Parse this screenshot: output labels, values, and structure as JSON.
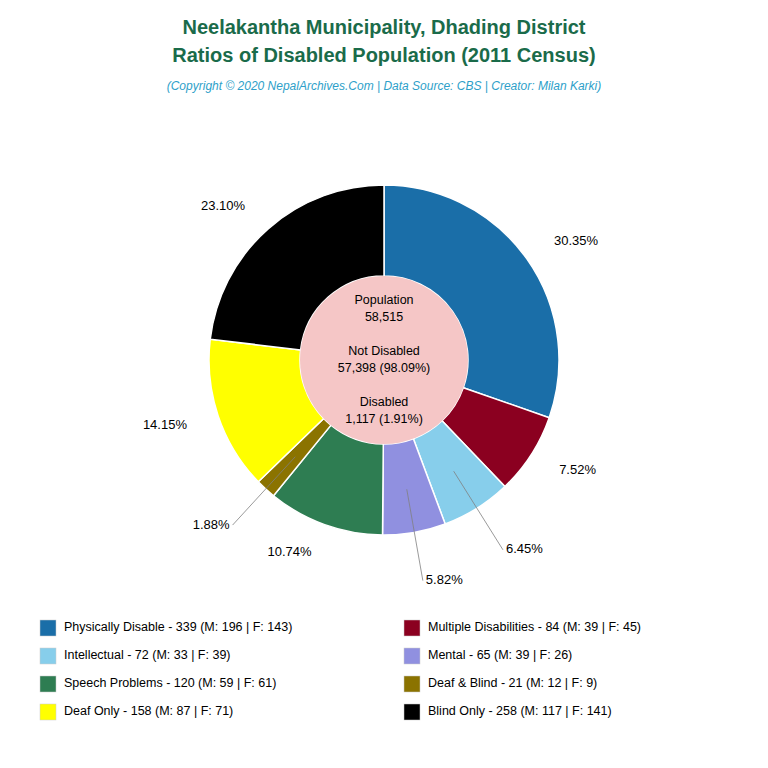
{
  "chart_data": {
    "type": "pie",
    "title": "Neelakantha Municipality, Dhading District\nRatios of Disabled Population (2011 Census)",
    "subtitle": "(Copyright © 2020 NepalArchives.Com | Data Source: CBS | Creator: Milan Karki)",
    "categories": [
      "Physically Disable - 339 (M: 196 | F: 143)",
      "Multiple Disabilities - 84 (M: 39 | F: 45)",
      "Intellectual - 72 (M: 33 | F: 39)",
      "Mental - 65 (M: 39 | F: 26)",
      "Speech Problems - 120 (M: 59 | F: 61)",
      "Deaf & Blind - 21 (M: 12 | F: 9)",
      "Deaf Only - 158 (M: 87 | F: 71)",
      "Blind Only - 258 (M: 117 | F: 141)"
    ],
    "values": [
      30.35,
      7.52,
      6.45,
      5.82,
      10.74,
      1.88,
      14.15,
      23.1
    ],
    "value_labels": [
      "30.35%",
      "7.52%",
      "6.45%",
      "5.82%",
      "10.74%",
      "1.88%",
      "14.15%",
      "23.10%"
    ],
    "colors": [
      "#1a6ea8",
      "#8b0020",
      "#87ceeb",
      "#9090e0",
      "#2e7d52",
      "#8b7300",
      "#ffff00",
      "#000000"
    ],
    "data_labels": true,
    "legend": "bottom",
    "annotations": [
      "Population\n58,515",
      "Not Disabled\n57,398 (98.09%)",
      "Disabled\n1,117 (1.91%)"
    ]
  }
}
